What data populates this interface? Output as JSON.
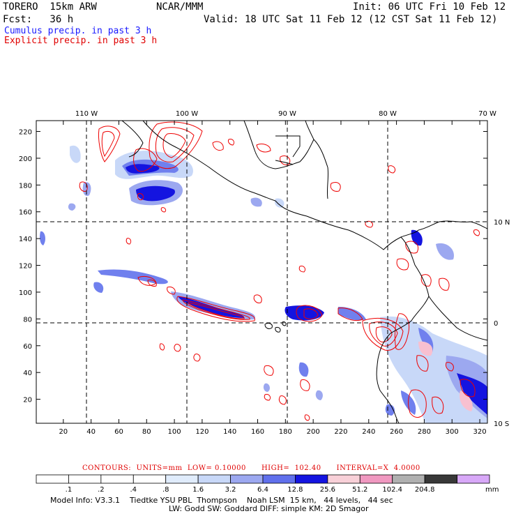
{
  "header": {
    "model": "TORERO  15km ARW",
    "center": "NCAR/MMM",
    "init": "Init: 06 UTC Fri 10 Feb 12",
    "fcst": "Fcst:   36 h",
    "valid": "Valid: 18 UTC Sat 11 Feb 12 (12 CST Sat 11 Feb 12)",
    "field_cumulus": "Cumulus precip. in past 3 h",
    "field_explicit": "Explicit precip. in past 3 h"
  },
  "map": {
    "lon_labels": [
      "110 W",
      "100 W",
      "90 W",
      "80 W",
      "70 W"
    ],
    "lat_labels": [
      "10 N",
      "0",
      "10 S"
    ],
    "x_ticks": [
      "20",
      "40",
      "60",
      "80",
      "100",
      "120",
      "140",
      "160",
      "180",
      "200",
      "220",
      "240",
      "260",
      "280",
      "300",
      "320"
    ],
    "y_ticks": [
      "20",
      "40",
      "60",
      "80",
      "100",
      "120",
      "140",
      "160",
      "180",
      "200",
      "220"
    ],
    "colors": {
      "cumulus_light": "#c8dcf8",
      "cumulus_mid": "#7890f0",
      "cumulus_dark": "#1010e0",
      "explicit_contour": "#ee0000",
      "land_outline": "#000000",
      "pink": "#f8c0d0"
    }
  },
  "contours": {
    "caption": "CONTOURS:  UNITS=mm  LOW= 0.10000      HIGH=  102.40      INTERVAL=X  4.0000"
  },
  "legend": {
    "unit": "mm",
    "labels": [
      ".1",
      ".2",
      ".4",
      ".8",
      "1.6",
      "3.2",
      "6.4",
      "12.8",
      "25.6",
      "51.2",
      "102.4",
      "204.8"
    ],
    "colors": [
      "#ffffff",
      "#ffffff",
      "#ffffff",
      "#ffffff",
      "#e0ecfc",
      "#c8d8f8",
      "#9ca8f0",
      "#6070ec",
      "#1414e0",
      "#f8d0d8",
      "#f098c0",
      "#b0b0b0",
      "#383838",
      "#d8a8f8"
    ]
  },
  "footer": {
    "line1": "Model Info: V3.3.1    Tiedtke YSU PBL  Thompson    Noah LSM  15 km,   44 levels,   44 sec",
    "line2": "LW: Godd SW: Goddard DIFF: simple KM: 2D Smagor"
  }
}
